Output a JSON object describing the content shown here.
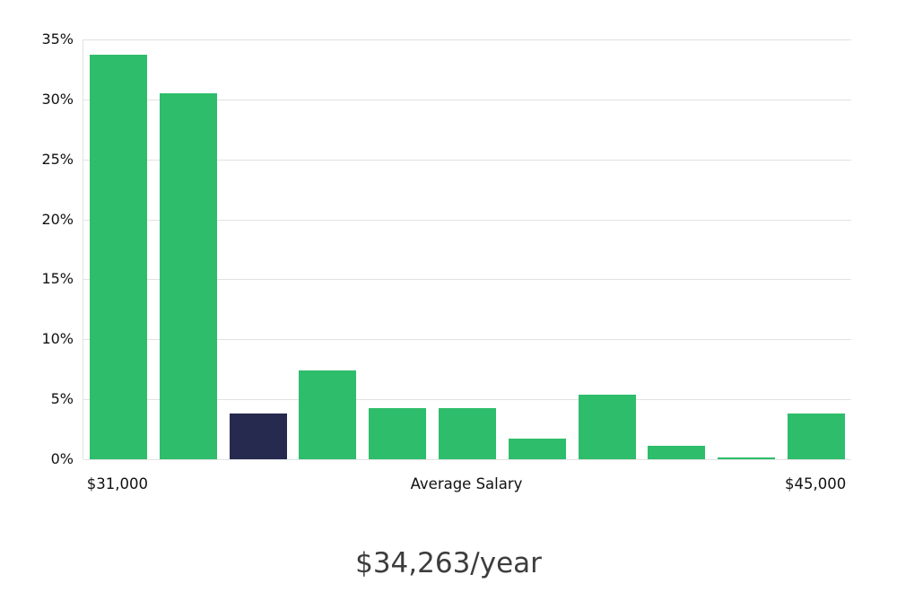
{
  "chart_data": {
    "type": "bar",
    "title": "$34,263/year",
    "x_axis": {
      "left_label": "$31,000",
      "center_label": "Average Salary",
      "right_label": "$45,000"
    },
    "ylim": [
      0,
      35
    ],
    "ytick_step": 5,
    "ytick_suffix": "%",
    "categories": [
      "bin-1",
      "bin-2",
      "bin-3",
      "bin-4",
      "bin-5",
      "bin-6",
      "bin-7",
      "bin-8",
      "bin-9",
      "bin-10",
      "bin-11"
    ],
    "values": [
      33.7,
      30.5,
      3.8,
      7.4,
      4.3,
      4.3,
      1.7,
      5.4,
      1.1,
      0.15,
      3.8
    ],
    "highlight_index": 2,
    "grid": true,
    "legend": false,
    "colors": {
      "bar": "#2EBD6B",
      "highlight": "#262A4E",
      "grid": "#e2e2e2",
      "tick_text": "#111111",
      "title_text": "#3d3d3d",
      "background": "#ffffff"
    }
  }
}
